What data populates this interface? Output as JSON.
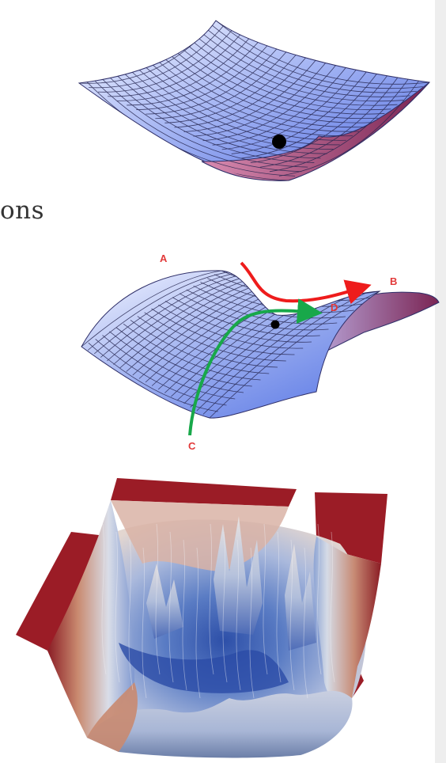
{
  "text_fragment": "ons",
  "saddle_labels": {
    "a": "A",
    "b": "B",
    "c": "C",
    "d": "D"
  },
  "colors": {
    "surface_light": "#eef2ff",
    "surface_blue": "#5f7ee8",
    "surface_magenta": "#8a2e5e",
    "path_red": "#ee1c1c",
    "path_green": "#18a84a",
    "label_red": "#e23a3a",
    "landscape_red": "#9b1c26",
    "landscape_blue": "#3b5fb0"
  },
  "icons": [
    "bowl-surface",
    "saddle-surface",
    "loss-landscape"
  ]
}
